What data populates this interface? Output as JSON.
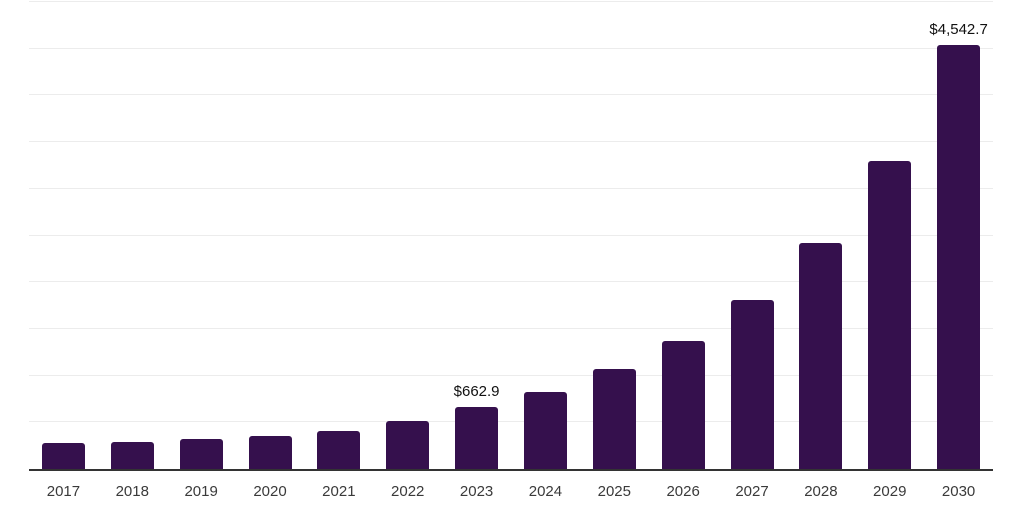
{
  "page": {
    "background_color": "#FFFFFF"
  },
  "chart_data": {
    "type": "bar",
    "title": "",
    "categories": [
      "2017",
      "2018",
      "2019",
      "2020",
      "2021",
      "2022",
      "2023",
      "2024",
      "2025",
      "2026",
      "2027",
      "2028",
      "2029",
      "2030"
    ],
    "values": [
      275,
      290,
      318,
      350,
      412,
      514,
      662.9,
      828,
      1068,
      1370,
      1810,
      2417,
      3298,
      4542.7
    ],
    "value_labels": {
      "2023": "$662.9",
      "2030": "$4,542.7"
    },
    "xlabel": "",
    "ylabel": "",
    "ylim": [
      0,
      5000
    ],
    "gridline_step": 500,
    "grid": true,
    "y_axis_labels_visible": false,
    "legend": "none",
    "colors": {
      "bar": "#35104D",
      "axis_line": "#333333",
      "gridline": "#ECECEC",
      "value_label": "#111111",
      "tick_label": "#3A3A3A"
    }
  }
}
